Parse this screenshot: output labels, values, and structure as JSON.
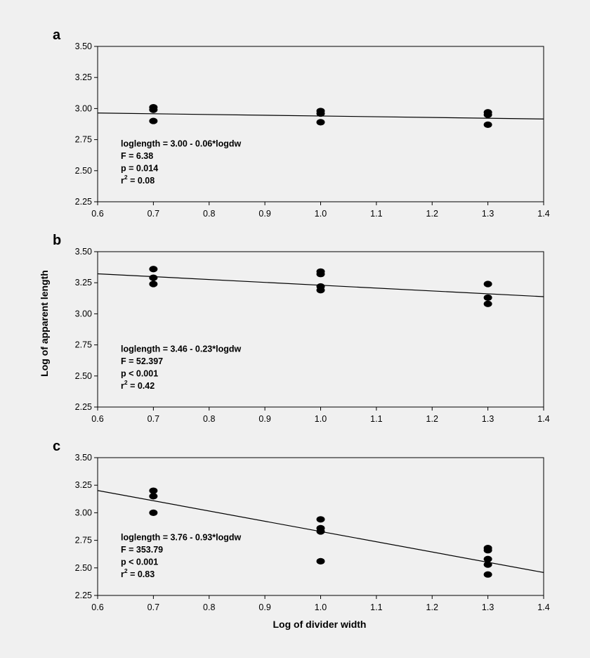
{
  "figure": {
    "ylabel": "Log of apparent length",
    "xlabel": "Log of divider width"
  },
  "chart_data": [
    {
      "type": "scatter",
      "panel": "a",
      "xlim": [
        0.6,
        1.4
      ],
      "ylim": [
        2.25,
        3.5
      ],
      "xticks": [
        "0.6",
        "0.7",
        "0.8",
        "0.9",
        "1.0",
        "1.1",
        "1.2",
        "1.3",
        "1.4"
      ],
      "yticks": [
        "2.25",
        "2.50",
        "2.75",
        "3.00",
        "3.25",
        "3.50"
      ],
      "points": [
        {
          "x": 0.7,
          "y": 3.01
        },
        {
          "x": 0.7,
          "y": 2.99
        },
        {
          "x": 0.7,
          "y": 2.9
        },
        {
          "x": 1.0,
          "y": 2.98
        },
        {
          "x": 1.0,
          "y": 2.96
        },
        {
          "x": 1.0,
          "y": 2.89
        },
        {
          "x": 1.3,
          "y": 2.97
        },
        {
          "x": 1.3,
          "y": 2.95
        },
        {
          "x": 1.3,
          "y": 2.87
        }
      ],
      "fit": {
        "intercept": 3.0,
        "slope": -0.06
      },
      "annotation": {
        "equation": "loglength = 3.00 - 0.06*logdw",
        "f": "F = 6.38",
        "p": "p = 0.014",
        "r2_base": "r",
        "r2_sup": "2",
        "r2_rest": " = 0.08"
      }
    },
    {
      "type": "scatter",
      "panel": "b",
      "xlim": [
        0.6,
        1.4
      ],
      "ylim": [
        2.25,
        3.5
      ],
      "xticks": [
        "0.6",
        "0.7",
        "0.8",
        "0.9",
        "1.0",
        "1.1",
        "1.2",
        "1.3",
        "1.4"
      ],
      "yticks": [
        "2.25",
        "2.50",
        "2.75",
        "3.00",
        "3.25",
        "3.50"
      ],
      "points": [
        {
          "x": 0.7,
          "y": 3.36
        },
        {
          "x": 0.7,
          "y": 3.29
        },
        {
          "x": 0.7,
          "y": 3.24
        },
        {
          "x": 1.0,
          "y": 3.34
        },
        {
          "x": 1.0,
          "y": 3.32
        },
        {
          "x": 1.0,
          "y": 3.22
        },
        {
          "x": 1.0,
          "y": 3.19
        },
        {
          "x": 1.3,
          "y": 3.24
        },
        {
          "x": 1.3,
          "y": 3.13
        },
        {
          "x": 1.3,
          "y": 3.08
        }
      ],
      "fit": {
        "intercept": 3.46,
        "slope": -0.23
      },
      "annotation": {
        "equation": "loglength = 3.46 - 0.23*logdw",
        "f": "F = 52.397",
        "p": "p < 0.001",
        "r2_base": "r",
        "r2_sup": "2",
        "r2_rest": " = 0.42"
      }
    },
    {
      "type": "scatter",
      "panel": "c",
      "xlim": [
        0.6,
        1.4
      ],
      "ylim": [
        2.25,
        3.5
      ],
      "xticks": [
        "0.6",
        "0.7",
        "0.8",
        "0.9",
        "1.0",
        "1.1",
        "1.2",
        "1.3",
        "1.4"
      ],
      "yticks": [
        "2.25",
        "2.50",
        "2.75",
        "3.00",
        "3.25",
        "3.50"
      ],
      "points": [
        {
          "x": 0.7,
          "y": 3.2
        },
        {
          "x": 0.7,
          "y": 3.15
        },
        {
          "x": 0.7,
          "y": 3.0
        },
        {
          "x": 1.0,
          "y": 2.94
        },
        {
          "x": 1.0,
          "y": 2.86
        },
        {
          "x": 1.0,
          "y": 2.83
        },
        {
          "x": 1.0,
          "y": 2.56
        },
        {
          "x": 1.3,
          "y": 2.68
        },
        {
          "x": 1.3,
          "y": 2.66
        },
        {
          "x": 1.3,
          "y": 2.58
        },
        {
          "x": 1.3,
          "y": 2.53
        },
        {
          "x": 1.3,
          "y": 2.44
        }
      ],
      "fit": {
        "intercept": 3.76,
        "slope": -0.93
      },
      "annotation": {
        "equation": "loglength = 3.76 - 0.93*logdw",
        "f": "F = 353.79",
        "p": "p < 0.001",
        "r2_base": "r",
        "r2_sup": "2",
        "r2_rest": " = 0.83"
      }
    }
  ]
}
